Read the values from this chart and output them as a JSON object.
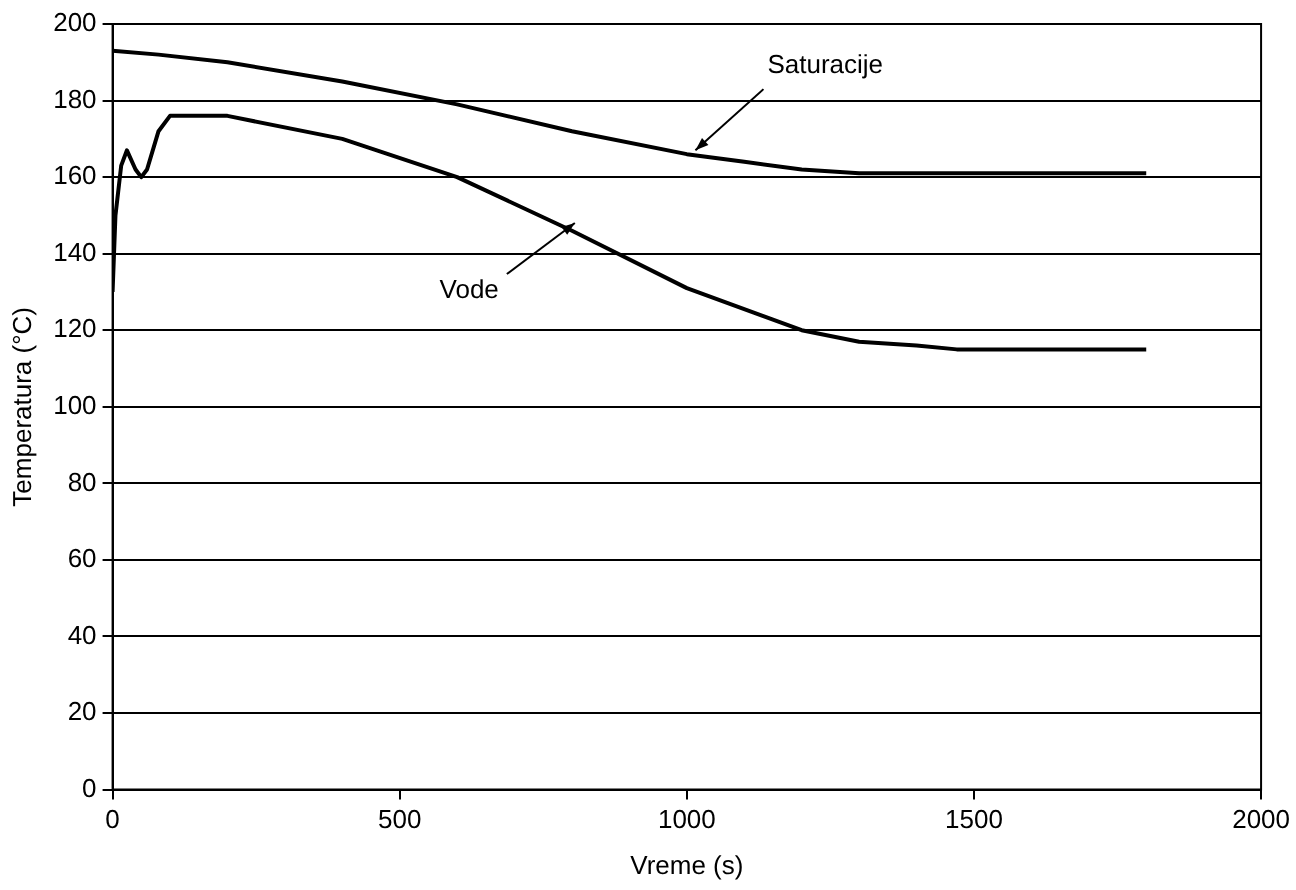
{
  "chart_data": {
    "type": "line",
    "xlabel": "Vreme (s)",
    "ylabel": "Temperatura (°C)",
    "xlim": [
      0,
      2000
    ],
    "xticks": [
      0,
      500,
      1000,
      1500,
      2000
    ],
    "ylim": [
      0,
      200
    ],
    "yticks": [
      0,
      20,
      40,
      60,
      80,
      100,
      120,
      140,
      160,
      180,
      200
    ],
    "grid": "y",
    "legend": false,
    "marker": "none",
    "line_style": "solid",
    "series": [
      {
        "color": "#000000",
        "x": [
          0,
          80,
          200,
          400,
          600,
          800,
          1000,
          1100,
          1200,
          1300,
          1800
        ],
        "values": [
          193,
          192,
          190,
          185,
          179,
          172,
          166,
          164,
          162,
          161,
          161
        ]
      },
      {
        "color": "#000000",
        "x": [
          0,
          5,
          15,
          25,
          40,
          50,
          60,
          80,
          100,
          200,
          400,
          600,
          800,
          1000,
          1200,
          1300,
          1400,
          1470,
          1800
        ],
        "values": [
          130,
          150,
          163,
          167,
          162,
          160,
          162,
          172,
          176,
          176,
          170,
          160,
          146,
          131,
          120,
          117,
          116,
          115,
          115
        ]
      }
    ],
    "annotations": [
      {
        "text": "Saturacije",
        "x": 1015,
        "y": 167
      },
      {
        "text": "Vode",
        "x": 805,
        "y": 148
      }
    ]
  }
}
